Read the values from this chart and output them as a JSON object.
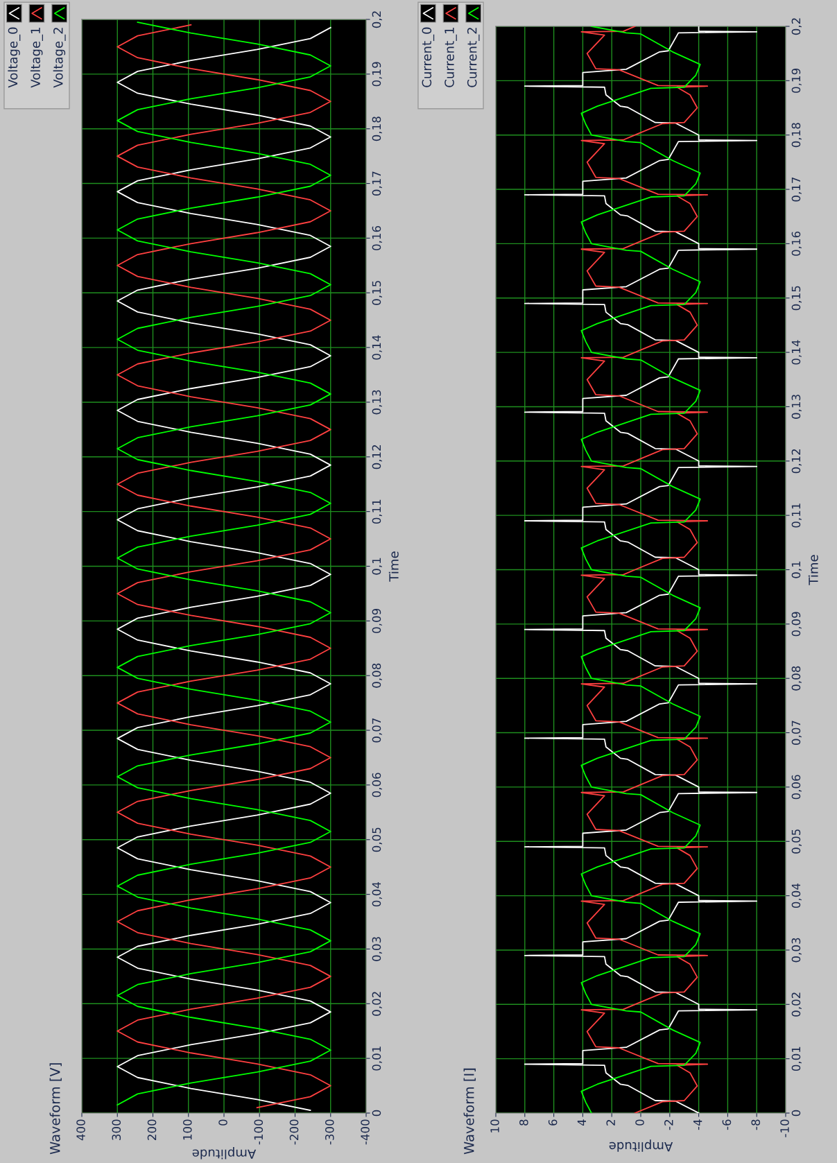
{
  "chart_data": [
    {
      "type": "line",
      "title": "Waveform [V]",
      "xlabel": "Amplitude",
      "ylabel": "Time",
      "grid": true,
      "legend": "top left",
      "ylim": [
        0,
        0.2
      ],
      "xlim": [
        400,
        -400
      ],
      "yticks": [
        0,
        {
          "value": 0.01,
          "label": "0,01"
        },
        {
          "value": 0.02,
          "label": "0,02"
        },
        {
          "value": 0.03,
          "label": "0,03"
        },
        {
          "value": 0.04,
          "label": "0,04"
        },
        {
          "value": 0.05,
          "label": "0,05"
        },
        {
          "value": 0.06,
          "label": "0,06"
        },
        {
          "value": 0.07,
          "label": "0,07"
        },
        {
          "value": 0.08,
          "label": "0,08"
        },
        {
          "value": 0.09,
          "label": "0,09"
        },
        {
          "value": 0.1,
          "label": "0,1"
        },
        {
          "value": 0.11,
          "label": "0,11"
        },
        {
          "value": 0.12,
          "label": "0,12"
        },
        {
          "value": 0.13,
          "label": "0,13"
        },
        {
          "value": 0.14,
          "label": "0,14"
        },
        {
          "value": 0.15,
          "label": "0,15"
        },
        {
          "value": 0.16,
          "label": "0,16"
        },
        {
          "value": 0.17,
          "label": "0,17"
        },
        {
          "value": 0.18,
          "label": "0,18"
        },
        {
          "value": 0.19,
          "label": "0,19"
        },
        {
          "value": 0.2,
          "label": "0,2"
        }
      ],
      "xticks": [
        400,
        300,
        200,
        100,
        0,
        -100,
        -200,
        -300,
        -400
      ],
      "series": [
        {
          "name": "Voltage_0",
          "color": "#ffffff",
          "values": [
            0.0005,
            0.0025,
            0.0045,
            0.0065,
            0.0085,
            0.0105,
            0.0125,
            0.0145,
            0.0165,
            0.0185,
            0.0205,
            0.0225,
            0.0245,
            0.0265,
            0.0285,
            0.0305,
            0.0325,
            0.0345,
            0.0365,
            0.0385,
            0.0405,
            0.0425,
            0.0445,
            0.0465,
            0.0485,
            0.0505,
            0.0525,
            0.0545,
            0.0565,
            0.0585,
            0.0605,
            0.0625,
            0.0645,
            0.0665,
            0.0685,
            0.0705,
            0.0725,
            0.0745,
            0.0765,
            0.0785,
            0.0805,
            0.0825,
            0.0845,
            0.0865,
            0.0885,
            0.0905,
            0.0925,
            0.0945,
            0.0965,
            0.0985,
            0.1005,
            0.1025,
            0.1045,
            0.1065,
            0.1085,
            0.1105,
            0.1125,
            0.1145,
            0.1165,
            0.1185,
            0.1205,
            0.1225,
            0.1245,
            0.1265,
            0.1285,
            0.1305,
            0.1325,
            0.1345,
            0.1365,
            0.1385,
            0.1405,
            0.1425,
            0.1445,
            0.1465,
            0.1485,
            0.1505,
            0.1525,
            0.1545,
            0.1565,
            0.1585,
            0.1605,
            0.1625,
            0.1645,
            0.1665,
            0.1685,
            0.1705,
            0.1725,
            0.1745,
            0.1765,
            0.1785,
            0.1805,
            0.1825,
            0.1845,
            0.1865,
            0.1885,
            0.1905,
            0.1925,
            0.1945,
            0.1965,
            0.1985
          ],
          "x": [
            -243,
            -93,
            93,
            243,
            300,
            243,
            93,
            -93,
            -243,
            -300,
            -243,
            -93,
            93,
            243,
            300,
            243,
            93,
            -93,
            -243,
            -300,
            -243,
            -93,
            93,
            243,
            300,
            243,
            93,
            -93,
            -243,
            -300,
            -243,
            -93,
            93,
            243,
            300,
            243,
            93,
            -93,
            -243,
            -300,
            -243,
            -93,
            93,
            243,
            300,
            243,
            93,
            -93,
            -243,
            -300,
            -243,
            -93,
            93,
            243,
            300,
            243,
            93,
            -93,
            -243,
            -300,
            -243,
            -93,
            93,
            243,
            300,
            243,
            93,
            -93,
            -243,
            -300,
            -243,
            -93,
            93,
            243,
            300,
            243,
            93,
            -93,
            -243,
            -300,
            -243,
            -93,
            93,
            243,
            300,
            243,
            93,
            -93,
            -243,
            -300,
            -243,
            -93,
            93,
            243,
            300,
            243,
            93,
            -93,
            -243,
            -300
          ]
        },
        {
          "name": "Voltage_1",
          "color": "#ff4040",
          "values": [
            0.001,
            0.003,
            0.005,
            0.007,
            0.009,
            0.011,
            0.013,
            0.015,
            0.017,
            0.019,
            0.021,
            0.023,
            0.025,
            0.027,
            0.029,
            0.031,
            0.033,
            0.035,
            0.037,
            0.039,
            0.041,
            0.043,
            0.045,
            0.047,
            0.049,
            0.051,
            0.053,
            0.055,
            0.057,
            0.059,
            0.061,
            0.063,
            0.065,
            0.067,
            0.069,
            0.071,
            0.073,
            0.075,
            0.077,
            0.079,
            0.081,
            0.083,
            0.085,
            0.087,
            0.089,
            0.091,
            0.093,
            0.095,
            0.097,
            0.099,
            0.101,
            0.103,
            0.105,
            0.107,
            0.109,
            0.111,
            0.113,
            0.115,
            0.117,
            0.119,
            0.121,
            0.123,
            0.125,
            0.127,
            0.129,
            0.131,
            0.133,
            0.135,
            0.137,
            0.139,
            0.141,
            0.143,
            0.145,
            0.147,
            0.149,
            0.151,
            0.153,
            0.155,
            0.157,
            0.159,
            0.161,
            0.163,
            0.165,
            0.167,
            0.169,
            0.171,
            0.173,
            0.175,
            0.177,
            0.179,
            0.181,
            0.183,
            0.185,
            0.187,
            0.189,
            0.191,
            0.193,
            0.195,
            0.197,
            0.199
          ],
          "x": [
            -93,
            -243,
            -300,
            -243,
            -93,
            93,
            243,
            300,
            243,
            93,
            -93,
            -243,
            -300,
            -243,
            -93,
            93,
            243,
            300,
            243,
            93,
            -93,
            -243,
            -300,
            -243,
            -93,
            93,
            243,
            300,
            243,
            93,
            -93,
            -243,
            -300,
            -243,
            -93,
            93,
            243,
            300,
            243,
            93,
            -93,
            -243,
            -300,
            -243,
            -93,
            93,
            243,
            300,
            243,
            93,
            -93,
            -243,
            -300,
            -243,
            -93,
            93,
            243,
            300,
            243,
            93,
            -93,
            -243,
            -300,
            -243,
            -93,
            93,
            243,
            300,
            243,
            93,
            -93,
            -243,
            -300,
            -243,
            -93,
            93,
            243,
            300,
            243,
            93,
            -93,
            -243,
            -300,
            -243,
            -93,
            93,
            243,
            300,
            243,
            93,
            -93,
            -243,
            -300,
            -243,
            -93,
            93,
            243,
            300,
            243,
            93
          ]
        },
        {
          "name": "Voltage_2",
          "color": "#00ff00",
          "values": [
            0.0015,
            0.0035,
            0.0055,
            0.0075,
            0.0095,
            0.0115,
            0.0135,
            0.0155,
            0.0175,
            0.0195,
            0.0215,
            0.0235,
            0.0255,
            0.0275,
            0.0295,
            0.0315,
            0.0335,
            0.0355,
            0.0375,
            0.0395,
            0.0415,
            0.0435,
            0.0455,
            0.0475,
            0.0495,
            0.0515,
            0.0535,
            0.0555,
            0.0575,
            0.0595,
            0.0615,
            0.0635,
            0.0655,
            0.0675,
            0.0695,
            0.0715,
            0.0735,
            0.0755,
            0.0775,
            0.0795,
            0.0815,
            0.0835,
            0.0855,
            0.0875,
            0.0895,
            0.0915,
            0.0935,
            0.0955,
            0.0975,
            0.0995,
            0.1015,
            0.1035,
            0.1055,
            0.1075,
            0.1095,
            0.1115,
            0.1135,
            0.1155,
            0.1175,
            0.1195,
            0.1215,
            0.1235,
            0.1255,
            0.1275,
            0.1295,
            0.1315,
            0.1335,
            0.1355,
            0.1375,
            0.1395,
            0.1415,
            0.1435,
            0.1455,
            0.1475,
            0.1495,
            0.1515,
            0.1535,
            0.1555,
            0.1575,
            0.1595,
            0.1615,
            0.1635,
            0.1655,
            0.1675,
            0.1695,
            0.1715,
            0.1735,
            0.1755,
            0.1775,
            0.1795,
            0.1815,
            0.1835,
            0.1855,
            0.1875,
            0.1895,
            0.1915,
            0.1935,
            0.1955,
            0.1975,
            0.1995
          ],
          "x": [
            300,
            243,
            93,
            -93,
            -243,
            -300,
            -243,
            -93,
            93,
            243,
            300,
            243,
            93,
            -93,
            -243,
            -300,
            -243,
            -93,
            93,
            243,
            300,
            243,
            93,
            -93,
            -243,
            -300,
            -243,
            -93,
            93,
            243,
            300,
            243,
            93,
            -93,
            -243,
            -300,
            -243,
            -93,
            93,
            243,
            300,
            243,
            93,
            -93,
            -243,
            -300,
            -243,
            -93,
            93,
            243,
            300,
            243,
            93,
            -93,
            -243,
            -300,
            -243,
            -93,
            93,
            243,
            300,
            243,
            93,
            -93,
            -243,
            -300,
            -243,
            -93,
            93,
            243,
            300,
            243,
            93,
            -93,
            -243,
            -300,
            -243,
            -93,
            93,
            243,
            300,
            243,
            93,
            -93,
            -243,
            -300,
            -243,
            -93,
            93,
            243,
            300,
            243,
            93,
            -93,
            -243,
            -300,
            -243,
            -93,
            93,
            243
          ]
        }
      ]
    },
    {
      "type": "line",
      "title": "Waveform [I]",
      "xlabel": "Amplitude",
      "ylabel": "Time",
      "grid": true,
      "legend": "top left",
      "ylim": [
        0,
        0.2
      ],
      "xlim": [
        10,
        -10
      ],
      "yticks": [
        0,
        {
          "value": 0.01,
          "label": "0,01"
        },
        {
          "value": 0.02,
          "label": "0,02"
        },
        {
          "value": 0.03,
          "label": "0,03"
        },
        {
          "value": 0.04,
          "label": "0,04"
        },
        {
          "value": 0.05,
          "label": "0,05"
        },
        {
          "value": 0.06,
          "label": "0,06"
        },
        {
          "value": 0.07,
          "label": "0,07"
        },
        {
          "value": 0.08,
          "label": "0,08"
        },
        {
          "value": 0.09,
          "label": "0,09"
        },
        {
          "value": 0.1,
          "label": "0,1"
        },
        {
          "value": 0.11,
          "label": "0,11"
        },
        {
          "value": 0.12,
          "label": "0,12"
        },
        {
          "value": 0.13,
          "label": "0,13"
        },
        {
          "value": 0.14,
          "label": "0,14"
        },
        {
          "value": 0.15,
          "label": "0,15"
        },
        {
          "value": 0.16,
          "label": "0,16"
        },
        {
          "value": 0.17,
          "label": "0,17"
        },
        {
          "value": 0.18,
          "label": "0,18"
        },
        {
          "value": 0.19,
          "label": "0,19"
        },
        {
          "value": 0.2,
          "label": "0,2"
        }
      ],
      "xticks": [
        10,
        8,
        6,
        4,
        2,
        0,
        -2,
        -4,
        -6,
        -8,
        -10
      ],
      "series": [
        {
          "name": "Current_0",
          "color": "#ffffff",
          "values": [
            0,
            0.0022,
            0.0023,
            0.0051,
            0.0053,
            0.0074,
            0.0088,
            0.009,
            0.0091,
            0.0115,
            0.0121,
            0.0153,
            0.0155,
            0.0188,
            0.019,
            0.0191,
            0.02,
            0.0222,
            0.0223,
            0.0251,
            0.0253,
            0.0274,
            0.0288,
            0.029,
            0.0291,
            0.0315,
            0.0321,
            0.0353,
            0.0355,
            0.0388,
            0.039,
            0.0391,
            0.04,
            0.0422,
            0.0423,
            0.0451,
            0.0453,
            0.0474,
            0.0488,
            0.049,
            0.0491,
            0.0515,
            0.0521,
            0.0553,
            0.0555,
            0.0588,
            0.059,
            0.0591,
            0.06,
            0.0622,
            0.0623,
            0.0651,
            0.0653,
            0.0674,
            0.0688,
            0.069,
            0.0691,
            0.0715,
            0.0721,
            0.0753,
            0.0755,
            0.0788,
            0.079,
            0.0791,
            0.08,
            0.0822,
            0.0823,
            0.0851,
            0.0853,
            0.0874,
            0.0888,
            0.089,
            0.0891,
            0.0915,
            0.0921,
            0.0953,
            0.0955,
            0.0988,
            0.099,
            0.0991,
            0.1,
            0.1022,
            0.1023,
            0.1051,
            0.1053,
            0.1074,
            0.1088,
            0.109,
            0.1091,
            0.1115,
            0.1121,
            0.1153,
            0.1155,
            0.1188,
            0.119,
            0.1191,
            0.12,
            0.1222,
            0.1223,
            0.1251,
            0.1253,
            0.1274,
            0.1288,
            0.129,
            0.1291,
            0.1315,
            0.1321,
            0.1353,
            0.1355,
            0.1388,
            0.139,
            0.1391,
            0.14,
            0.1422,
            0.1423,
            0.1451,
            0.1453,
            0.1474,
            0.1488,
            0.149,
            0.1491,
            0.1515,
            0.1521,
            0.1553,
            0.1555,
            0.1588,
            0.159,
            0.1591,
            0.16,
            0.1622,
            0.1623,
            0.1651,
            0.1653,
            0.1674,
            0.1688,
            0.169,
            0.1691,
            0.1715,
            0.1721,
            0.1753,
            0.1755,
            0.1788,
            0.179,
            0.1791,
            0.18,
            0.1822,
            0.1823,
            0.1851,
            0.1853,
            0.1874,
            0.1888,
            0.189,
            0.1891,
            0.1915,
            0.1921,
            0.1953,
            0.1955,
            0.1988,
            0.199,
            0.1991,
            0.2
          ],
          "x": [
            -4,
            -2.4,
            -1,
            0.9,
            1.4,
            2.4,
            2.5,
            8,
            4,
            4,
            1,
            -1.3,
            -1.9,
            -2.6,
            -8,
            -4,
            -4,
            -2.4,
            -1,
            0.9,
            1.4,
            2.4,
            2.5,
            8,
            4,
            4,
            1,
            -1.3,
            -1.9,
            -2.6,
            -8,
            -4,
            -4,
            -2.4,
            -1,
            0.9,
            1.4,
            2.4,
            2.5,
            8,
            4,
            4,
            1,
            -1.3,
            -1.9,
            -2.6,
            -8,
            -4,
            -4,
            -2.4,
            -1,
            0.9,
            1.4,
            2.4,
            2.5,
            8,
            4,
            4,
            1,
            -1.3,
            -1.9,
            -2.6,
            -8,
            -4,
            -4,
            -2.4,
            -1,
            0.9,
            1.4,
            2.4,
            2.5,
            8,
            4,
            4,
            1,
            -1.3,
            -1.9,
            -2.6,
            -8,
            -4,
            -4,
            -2.4,
            -1,
            0.9,
            1.4,
            2.4,
            2.5,
            8,
            4,
            4,
            1,
            -1.3,
            -1.9,
            -2.6,
            -8,
            -4,
            -4,
            -2.4,
            -1,
            0.9,
            1.4,
            2.4,
            2.5,
            8,
            4,
            4,
            1,
            -1.3,
            -1.9,
            -2.6,
            -8,
            -4,
            -4,
            -2.4,
            -1,
            0.9,
            1.4,
            2.4,
            2.5,
            8,
            4,
            4,
            1,
            -1.3,
            -1.9,
            -2.6,
            -8,
            -4,
            -4,
            -2.4,
            -1,
            0.9,
            1.4,
            2.4,
            2.5,
            8,
            4,
            4,
            1,
            -1.3,
            -1.9,
            -2.6,
            -8,
            -4,
            -4,
            -2.4,
            -1,
            0.9,
            1.4,
            2.4,
            2.5,
            8,
            4,
            4,
            1,
            -1.3,
            -1.9,
            -2.6,
            -8,
            -4,
            -4
          ]
        },
        {
          "name": "Current_1",
          "color": "#ff4040",
          "values": [
            0,
            0.0021,
            0.0023,
            0.005,
            0.0074,
            0.0088,
            0.009,
            0.0091,
            0.012,
            0.0122,
            0.015,
            0.0184,
            0.019,
            0.0191,
            0.02,
            0.0221,
            0.0223,
            0.025,
            0.0274,
            0.0288,
            0.029,
            0.0291,
            0.032,
            0.0322,
            0.035,
            0.0384,
            0.039,
            0.0391,
            0.04,
            0.0421,
            0.0423,
            0.045,
            0.0474,
            0.0488,
            0.049,
            0.0491,
            0.052,
            0.0522,
            0.055,
            0.0584,
            0.059,
            0.0591,
            0.06,
            0.0621,
            0.0623,
            0.065,
            0.0674,
            0.0688,
            0.069,
            0.0691,
            0.072,
            0.0722,
            0.075,
            0.0784,
            0.079,
            0.0791,
            0.08,
            0.0821,
            0.0823,
            0.085,
            0.0874,
            0.0888,
            0.089,
            0.0891,
            0.092,
            0.0922,
            0.095,
            0.0984,
            0.099,
            0.0991,
            0.1,
            0.1021,
            0.1023,
            0.105,
            0.1074,
            0.1088,
            0.109,
            0.1091,
            0.112,
            0.1122,
            0.115,
            0.1184,
            0.119,
            0.1191,
            0.12,
            0.1221,
            0.1223,
            0.125,
            0.1274,
            0.1288,
            0.129,
            0.1291,
            0.132,
            0.1322,
            0.135,
            0.1384,
            0.139,
            0.1391,
            0.14,
            0.1421,
            0.1423,
            0.145,
            0.1474,
            0.1488,
            0.149,
            0.1491,
            0.152,
            0.1522,
            0.155,
            0.1584,
            0.159,
            0.1591,
            0.16,
            0.1621,
            0.1623,
            0.165,
            0.1674,
            0.1688,
            0.169,
            0.1691,
            0.172,
            0.1722,
            0.175,
            0.1784,
            0.179,
            0.1791,
            0.18,
            0.1821,
            0.1823,
            0.185,
            0.1874,
            0.1888,
            0.189,
            0.1891,
            0.192,
            0.1922,
            0.195,
            0.1984,
            0.199,
            0.1991,
            0.2
          ],
          "x": [
            0.4,
            -1.5,
            -3,
            -3.9,
            -3.4,
            -2.5,
            -4.6,
            -1.2,
            1.5,
            3.1,
            3.7,
            2.5,
            4.1,
            1.2,
            0.4,
            -1.5,
            -3,
            -3.9,
            -3.4,
            -2.5,
            -4.6,
            -1.2,
            1.5,
            3.1,
            3.7,
            2.5,
            4.1,
            1.2,
            0.4,
            -1.5,
            -3,
            -3.9,
            -3.4,
            -2.5,
            -4.6,
            -1.2,
            1.5,
            3.1,
            3.7,
            2.5,
            4.1,
            1.2,
            0.4,
            -1.5,
            -3,
            -3.9,
            -3.4,
            -2.5,
            -4.6,
            -1.2,
            1.5,
            3.1,
            3.7,
            2.5,
            4.1,
            1.2,
            0.4,
            -1.5,
            -3,
            -3.9,
            -3.4,
            -2.5,
            -4.6,
            -1.2,
            1.5,
            3.1,
            3.7,
            2.5,
            4.1,
            1.2,
            0.4,
            -1.5,
            -3,
            -3.9,
            -3.4,
            -2.5,
            -4.6,
            -1.2,
            1.5,
            3.1,
            3.7,
            2.5,
            4.1,
            1.2,
            0.4,
            -1.5,
            -3,
            -3.9,
            -3.4,
            -2.5,
            -4.6,
            -1.2,
            1.5,
            3.1,
            3.7,
            2.5,
            4.1,
            1.2,
            0.4,
            -1.5,
            -3,
            -3.9,
            -3.4,
            -2.5,
            -4.6,
            -1.2,
            1.5,
            3.1,
            3.7,
            2.5,
            4.1,
            1.2,
            0.4,
            -1.5,
            -3,
            -3.9,
            -3.4,
            -2.5,
            -4.6,
            -1.2,
            1.5,
            3.1,
            3.7,
            2.5,
            4.1,
            1.2,
            0.4,
            -1.5,
            -3,
            -3.9,
            -3.4,
            -2.5,
            -4.6,
            -1.2,
            1.5,
            3.1,
            3.7,
            2.5,
            4.1,
            1.2,
            0.4
          ]
        },
        {
          "name": "Current_2",
          "color": "#00ff00",
          "values": [
            0,
            0.002,
            0.004,
            0.0053,
            0.0086,
            0.0088,
            0.011,
            0.013,
            0.0153,
            0.0186,
            0.0188,
            0.02,
            0.022,
            0.024,
            0.0253,
            0.0286,
            0.0288,
            0.031,
            0.033,
            0.0353,
            0.0386,
            0.0388,
            0.04,
            0.042,
            0.044,
            0.0453,
            0.0486,
            0.0488,
            0.051,
            0.053,
            0.0553,
            0.0586,
            0.0588,
            0.06,
            0.062,
            0.064,
            0.0653,
            0.0686,
            0.0688,
            0.071,
            0.073,
            0.0753,
            0.0786,
            0.0788,
            0.08,
            0.082,
            0.084,
            0.0853,
            0.0886,
            0.0888,
            0.091,
            0.093,
            0.0953,
            0.0986,
            0.0988,
            0.1,
            0.102,
            0.104,
            0.1053,
            0.1086,
            0.1088,
            0.111,
            0.113,
            0.1153,
            0.1186,
            0.1188,
            0.12,
            0.122,
            0.124,
            0.1253,
            0.1286,
            0.1288,
            0.131,
            0.133,
            0.1353,
            0.1386,
            0.1388,
            0.14,
            0.142,
            0.144,
            0.1453,
            0.1486,
            0.1488,
            0.151,
            0.153,
            0.1553,
            0.1586,
            0.1588,
            0.16,
            0.162,
            0.164,
            0.1653,
            0.1686,
            0.1688,
            0.171,
            0.173,
            0.1753,
            0.1786,
            0.1788,
            0.18,
            0.182,
            0.184,
            0.1853,
            0.1886,
            0.1888,
            0.191,
            0.193,
            0.1953,
            0.1986,
            0.1988,
            0.2
          ],
          "x": [
            3.4,
            3.8,
            4.1,
            3,
            -0.7,
            -3,
            -3.8,
            -4.1,
            -2.2,
            0,
            1,
            3.4,
            3.8,
            4.1,
            3,
            -0.7,
            -3,
            -3.8,
            -4.1,
            -2.2,
            0,
            1,
            3.4,
            3.8,
            4.1,
            3,
            -0.7,
            -3,
            -3.8,
            -4.1,
            -2.2,
            0,
            1,
            3.4,
            3.8,
            4.1,
            3,
            -0.7,
            -3,
            -3.8,
            -4.1,
            -2.2,
            0,
            1,
            3.4,
            3.8,
            4.1,
            3,
            -0.7,
            -3,
            -3.8,
            -4.1,
            -2.2,
            0,
            1,
            3.4,
            3.8,
            4.1,
            3,
            -0.7,
            -3,
            -3.8,
            -4.1,
            -2.2,
            0,
            1,
            3.4,
            3.8,
            4.1,
            3,
            -0.7,
            -3,
            -3.8,
            -4.1,
            -2.2,
            0,
            1,
            3.4,
            3.8,
            4.1,
            3,
            -0.7,
            -3,
            -3.8,
            -4.1,
            -2.2,
            0,
            1,
            3.4,
            3.8,
            4.1,
            3,
            -0.7,
            -3,
            -3.8,
            -4.1,
            -2.2,
            0,
            1,
            3.4,
            3.8,
            4.1,
            3,
            -0.7,
            -3,
            -3.8,
            -4.1,
            -2.2,
            0,
            1,
            3.4
          ]
        }
      ]
    }
  ]
}
